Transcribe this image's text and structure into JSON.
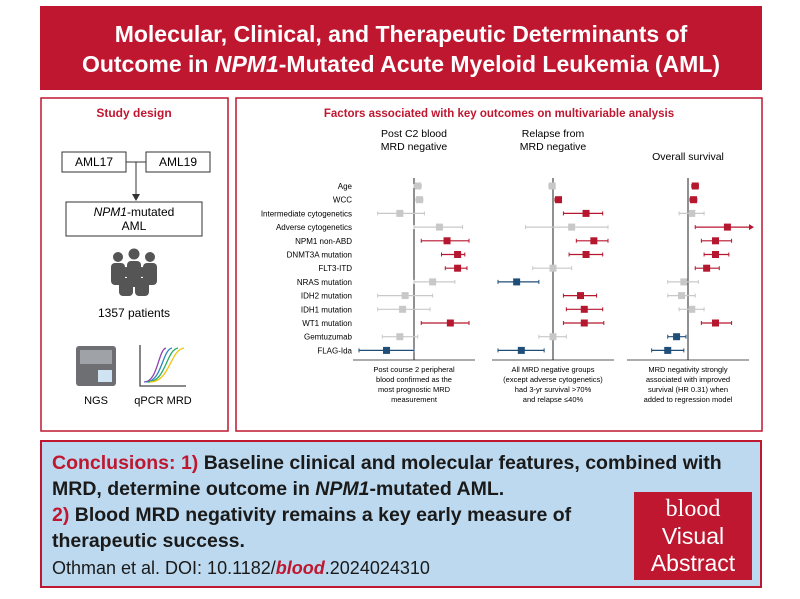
{
  "header": {
    "title_1": "Molecular, Clinical, and Therapeutic Determinants of",
    "title_2a": "Outcome in ",
    "title_2b": "NPM1",
    "title_2c": "-Mutated Acute Myeloid Leukemia (AML)"
  },
  "study_design": {
    "title": "Study design",
    "trial_1": "AML17",
    "trial_2": "AML19",
    "population_a": "NPM1",
    "population_b": "-mutated",
    "population_c": "AML",
    "patients": "1357 patients",
    "method_1": "NGS",
    "method_2": "qPCR MRD"
  },
  "analysis": {
    "title": "Factors associated with key outcomes on multivariable analysis",
    "xlim": [
      0.25,
      4
    ],
    "log_scale": true,
    "factors": [
      "Age",
      "WCC",
      "Intermediate cytogenetics",
      "Adverse cytogenetics",
      "NPM1 non-ABD",
      "DNMT3A mutation",
      "FLT3-ITD",
      "NRAS mutation",
      "IDH2 mutation",
      "IDH1 mutation",
      "WT1 mutation",
      "Gemtuzumab",
      "FLAG-Ida"
    ],
    "panels": [
      {
        "title": [
          "Post C2 blood",
          "MRD negative"
        ],
        "note": [
          "Post course 2 peripheral",
          "blood confirmed as the",
          "most prognostic MRD",
          "measurement"
        ],
        "points": [
          {
            "est": 1.1,
            "lo": 1.0,
            "hi": 1.2,
            "color": "#c8c8c8"
          },
          {
            "est": 1.15,
            "lo": 1.05,
            "hi": 1.25,
            "color": "#c8c8c8"
          },
          {
            "est": 0.7,
            "lo": 0.4,
            "hi": 1.3,
            "color": "#c8c8c8"
          },
          {
            "est": 1.9,
            "lo": 1.0,
            "hi": 3.4,
            "color": "#c8c8c8"
          },
          {
            "est": 2.3,
            "lo": 1.2,
            "hi": 4.0,
            "color": "#b5172f"
          },
          {
            "est": 3.0,
            "lo": 2.0,
            "hi": 3.6,
            "color": "#b5172f"
          },
          {
            "est": 3.0,
            "lo": 2.2,
            "hi": 3.8,
            "color": "#b5172f"
          },
          {
            "est": 1.6,
            "lo": 1.0,
            "hi": 2.8,
            "color": "#c8c8c8"
          },
          {
            "est": 0.8,
            "lo": 0.4,
            "hi": 1.6,
            "color": "#c8c8c8"
          },
          {
            "est": 0.75,
            "lo": 0.4,
            "hi": 1.5,
            "color": "#c8c8c8"
          },
          {
            "est": 2.5,
            "lo": 1.2,
            "hi": 4.0,
            "color": "#b5172f"
          },
          {
            "est": 0.7,
            "lo": 0.45,
            "hi": 1.1,
            "color": "#c8c8c8"
          },
          {
            "est": 0.5,
            "lo": 0.25,
            "hi": 1.0,
            "color": "#1f4e79"
          }
        ]
      },
      {
        "title": [
          "Relapse from",
          "MRD negative"
        ],
        "note": [
          "All MRD negative groups",
          "(except adverse cytogenetics)",
          "had 3-yr survival >70%",
          "and relapse ≤40%"
        ],
        "points": [
          {
            "est": 0.98,
            "lo": 0.9,
            "hi": 1.05,
            "color": "#c8c8c8"
          },
          {
            "est": 1.15,
            "lo": 1.05,
            "hi": 1.2,
            "color": "#b5172f"
          },
          {
            "est": 2.3,
            "lo": 1.3,
            "hi": 3.5,
            "color": "#b5172f"
          },
          {
            "est": 1.6,
            "lo": 0.5,
            "hi": 4.0,
            "color": "#c8c8c8"
          },
          {
            "est": 2.8,
            "lo": 1.8,
            "hi": 4.0,
            "color": "#b5172f"
          },
          {
            "est": 2.3,
            "lo": 1.5,
            "hi": 3.5,
            "color": "#b5172f"
          },
          {
            "est": 1.0,
            "lo": 0.6,
            "hi": 1.6,
            "color": "#c8c8c8"
          },
          {
            "est": 0.4,
            "lo": 0.25,
            "hi": 0.7,
            "color": "#1f4e79"
          },
          {
            "est": 2.0,
            "lo": 1.3,
            "hi": 3.0,
            "color": "#b5172f"
          },
          {
            "est": 2.2,
            "lo": 1.4,
            "hi": 3.5,
            "color": "#b5172f"
          },
          {
            "est": 2.2,
            "lo": 1.3,
            "hi": 3.6,
            "color": "#b5172f"
          },
          {
            "est": 1.0,
            "lo": 0.7,
            "hi": 1.4,
            "color": "#c8c8c8"
          },
          {
            "est": 0.45,
            "lo": 0.25,
            "hi": 0.8,
            "color": "#1f4e79"
          }
        ]
      },
      {
        "title": [
          "Overall survival"
        ],
        "note": [
          "MRD negativity strongly",
          "associated with improved",
          "survival (HR 0.31) when",
          "added to regression model"
        ],
        "points": [
          {
            "est": 1.2,
            "lo": 1.1,
            "hi": 1.3,
            "color": "#b5172f"
          },
          {
            "est": 1.15,
            "lo": 1.05,
            "hi": 1.25,
            "color": "#b5172f"
          },
          {
            "est": 1.1,
            "lo": 0.8,
            "hi": 1.5,
            "color": "#c8c8c8"
          },
          {
            "est": 2.7,
            "lo": 1.2,
            "hi": 6,
            "color": "#b5172f"
          },
          {
            "est": 2.0,
            "lo": 1.4,
            "hi": 3.0,
            "color": "#b5172f"
          },
          {
            "est": 2.0,
            "lo": 1.5,
            "hi": 2.8,
            "color": "#b5172f"
          },
          {
            "est": 1.6,
            "lo": 1.2,
            "hi": 2.2,
            "color": "#b5172f"
          },
          {
            "est": 0.9,
            "lo": 0.6,
            "hi": 1.3,
            "color": "#c8c8c8"
          },
          {
            "est": 0.85,
            "lo": 0.6,
            "hi": 1.2,
            "color": "#c8c8c8"
          },
          {
            "est": 1.1,
            "lo": 0.8,
            "hi": 1.5,
            "color": "#c8c8c8"
          },
          {
            "est": 2.0,
            "lo": 1.4,
            "hi": 3.0,
            "color": "#b5172f"
          },
          {
            "est": 0.75,
            "lo": 0.6,
            "hi": 0.95,
            "color": "#1f4e79"
          },
          {
            "est": 0.6,
            "lo": 0.4,
            "hi": 0.9,
            "color": "#1f4e79"
          }
        ]
      }
    ]
  },
  "conclusions": {
    "label": "Conclusions:",
    "num_1": "1)",
    "text_1a": "Baseline clinical and molecular features, combined with MRD, determine outcome in ",
    "text_1b": "NPM1",
    "text_1c": "-mutated AML.",
    "num_2": "2)",
    "text_2": "Blood MRD negativity remains a key early measure of therapeutic success.",
    "cite_a": "Othman et al. DOI: 10.1182/",
    "cite_b": "blood",
    "cite_c": ".2024024310"
  },
  "logo": {
    "brand": "blood",
    "line_1": "Visual",
    "line_2": "Abstract"
  }
}
